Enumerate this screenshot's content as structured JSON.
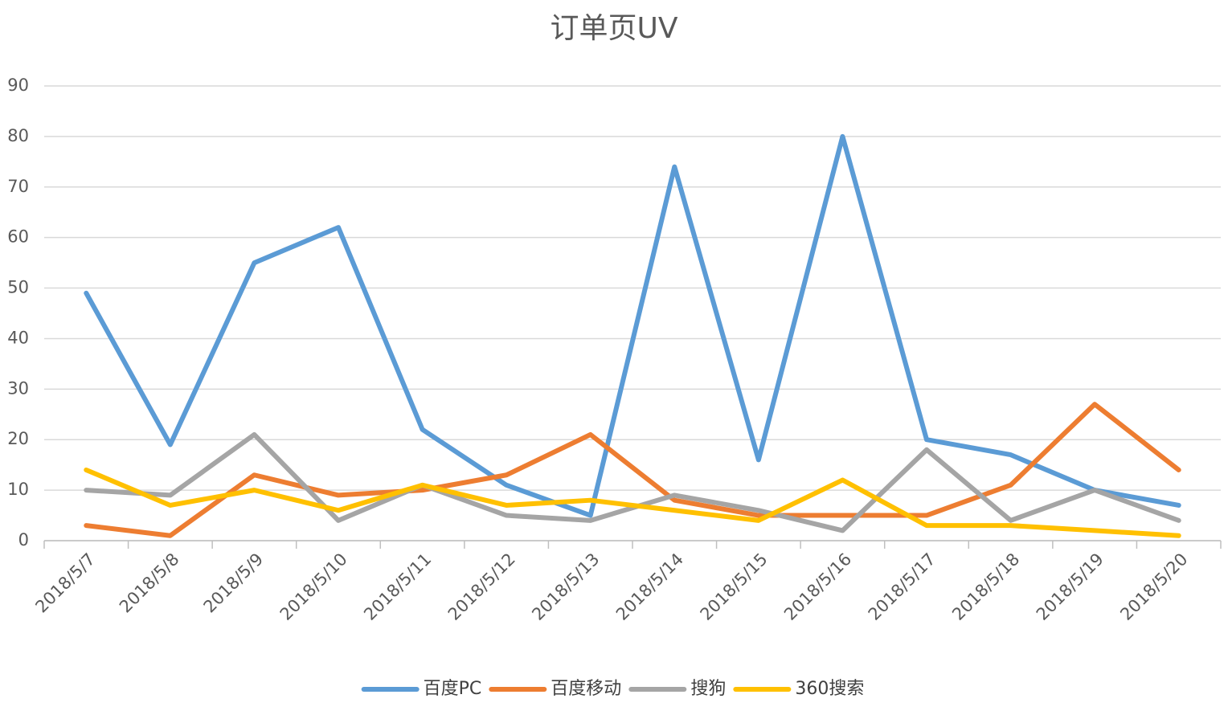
{
  "chart_data": {
    "type": "line",
    "title": "订单页UV",
    "categories": [
      "2018/5/7",
      "2018/5/8",
      "2018/5/9",
      "2018/5/10",
      "2018/5/11",
      "2018/5/12",
      "2018/5/13",
      "2018/5/14",
      "2018/5/15",
      "2018/5/16",
      "2018/5/17",
      "2018/5/18",
      "2018/5/19",
      "2018/5/20"
    ],
    "series": [
      {
        "name": "百度PC",
        "color": "#5b9bd5",
        "values": [
          49,
          19,
          55,
          62,
          22,
          11,
          5,
          74,
          16,
          80,
          20,
          17,
          10,
          7
        ]
      },
      {
        "name": "百度移动",
        "color": "#ed7d31",
        "values": [
          3,
          1,
          13,
          9,
          10,
          13,
          21,
          8,
          5,
          5,
          5,
          11,
          27,
          14
        ]
      },
      {
        "name": "搜狗",
        "color": "#a5a5a5",
        "values": [
          10,
          9,
          21,
          4,
          11,
          5,
          4,
          9,
          6,
          2,
          18,
          4,
          10,
          4
        ]
      },
      {
        "name": "360搜索",
        "color": "#ffc000",
        "values": [
          14,
          7,
          10,
          6,
          11,
          7,
          8,
          6,
          4,
          12,
          3,
          3,
          2,
          1
        ]
      }
    ],
    "ylim": [
      0,
      90
    ],
    "yticks": [
      0,
      10,
      20,
      30,
      40,
      50,
      60,
      70,
      80,
      90
    ],
    "grid": true,
    "legend": "bottom"
  }
}
